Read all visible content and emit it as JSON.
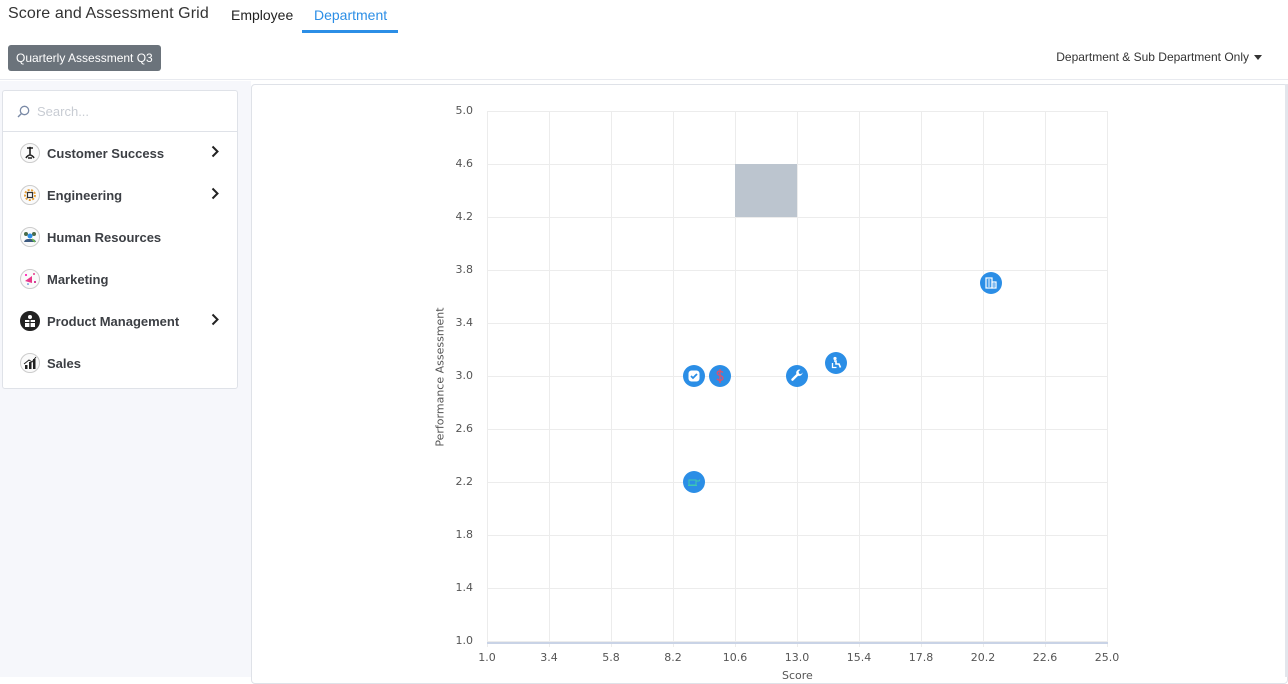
{
  "header": {
    "title": "Score and Assessment Grid",
    "tabs": [
      {
        "label": "Employee",
        "active": false
      },
      {
        "label": "Department",
        "active": true
      }
    ],
    "period_button": "Quarterly Assessment Q3",
    "filter_dropdown": "Department & Sub Department Only"
  },
  "sidebar": {
    "search_placeholder": "Search...",
    "items": [
      {
        "label": "Customer Success",
        "icon": "trophy-person-icon",
        "has_children": true
      },
      {
        "label": "Engineering",
        "icon": "gear-circuit-icon",
        "has_children": true
      },
      {
        "label": "Human Resources",
        "icon": "people-search-icon",
        "has_children": false
      },
      {
        "label": "Marketing",
        "icon": "megaphone-confetti-icon",
        "has_children": false
      },
      {
        "label": "Product Management",
        "icon": "gift-box-icon",
        "has_children": true
      },
      {
        "label": "Sales",
        "icon": "bar-chart-growth-icon",
        "has_children": false
      }
    ]
  },
  "colors": {
    "accent": "#2b8ee6",
    "period_button_bg": "#6b737b",
    "zone_fill": "#bcc5cf",
    "marker_fill": "#2b8ee6",
    "dollar_glyph": "#e0506a"
  },
  "chart_data": {
    "type": "scatter",
    "title": "",
    "xlabel": "Score",
    "ylabel": "Performance Assessment",
    "xlim": [
      1.0,
      25.0
    ],
    "ylim": [
      1.0,
      5.0
    ],
    "x_ticks": [
      "1.0",
      "3.4",
      "5.8",
      "8.2",
      "10.6",
      "13.0",
      "15.4",
      "17.8",
      "20.2",
      "22.6",
      "25.0"
    ],
    "y_ticks": [
      "5.0",
      "4.6",
      "4.2",
      "3.8",
      "3.4",
      "3.0",
      "2.6",
      "2.2",
      "1.8",
      "1.4",
      "1.0"
    ],
    "grid": true,
    "legend": null,
    "highlight_zone": {
      "x": [
        10.6,
        13.0
      ],
      "y": [
        4.2,
        4.6
      ],
      "color": "#bcc5cf"
    },
    "points": [
      {
        "x": 9.0,
        "y": 3.0,
        "icon": "checkbox-icon"
      },
      {
        "x": 10.0,
        "y": 3.0,
        "icon": "dollar-icon"
      },
      {
        "x": 13.0,
        "y": 3.0,
        "icon": "wrench-icon"
      },
      {
        "x": 14.5,
        "y": 3.1,
        "icon": "person-seated-icon"
      },
      {
        "x": 20.5,
        "y": 3.7,
        "icon": "building-icon"
      },
      {
        "x": 9.0,
        "y": 2.2,
        "icon": "laptop-icon"
      }
    ]
  }
}
